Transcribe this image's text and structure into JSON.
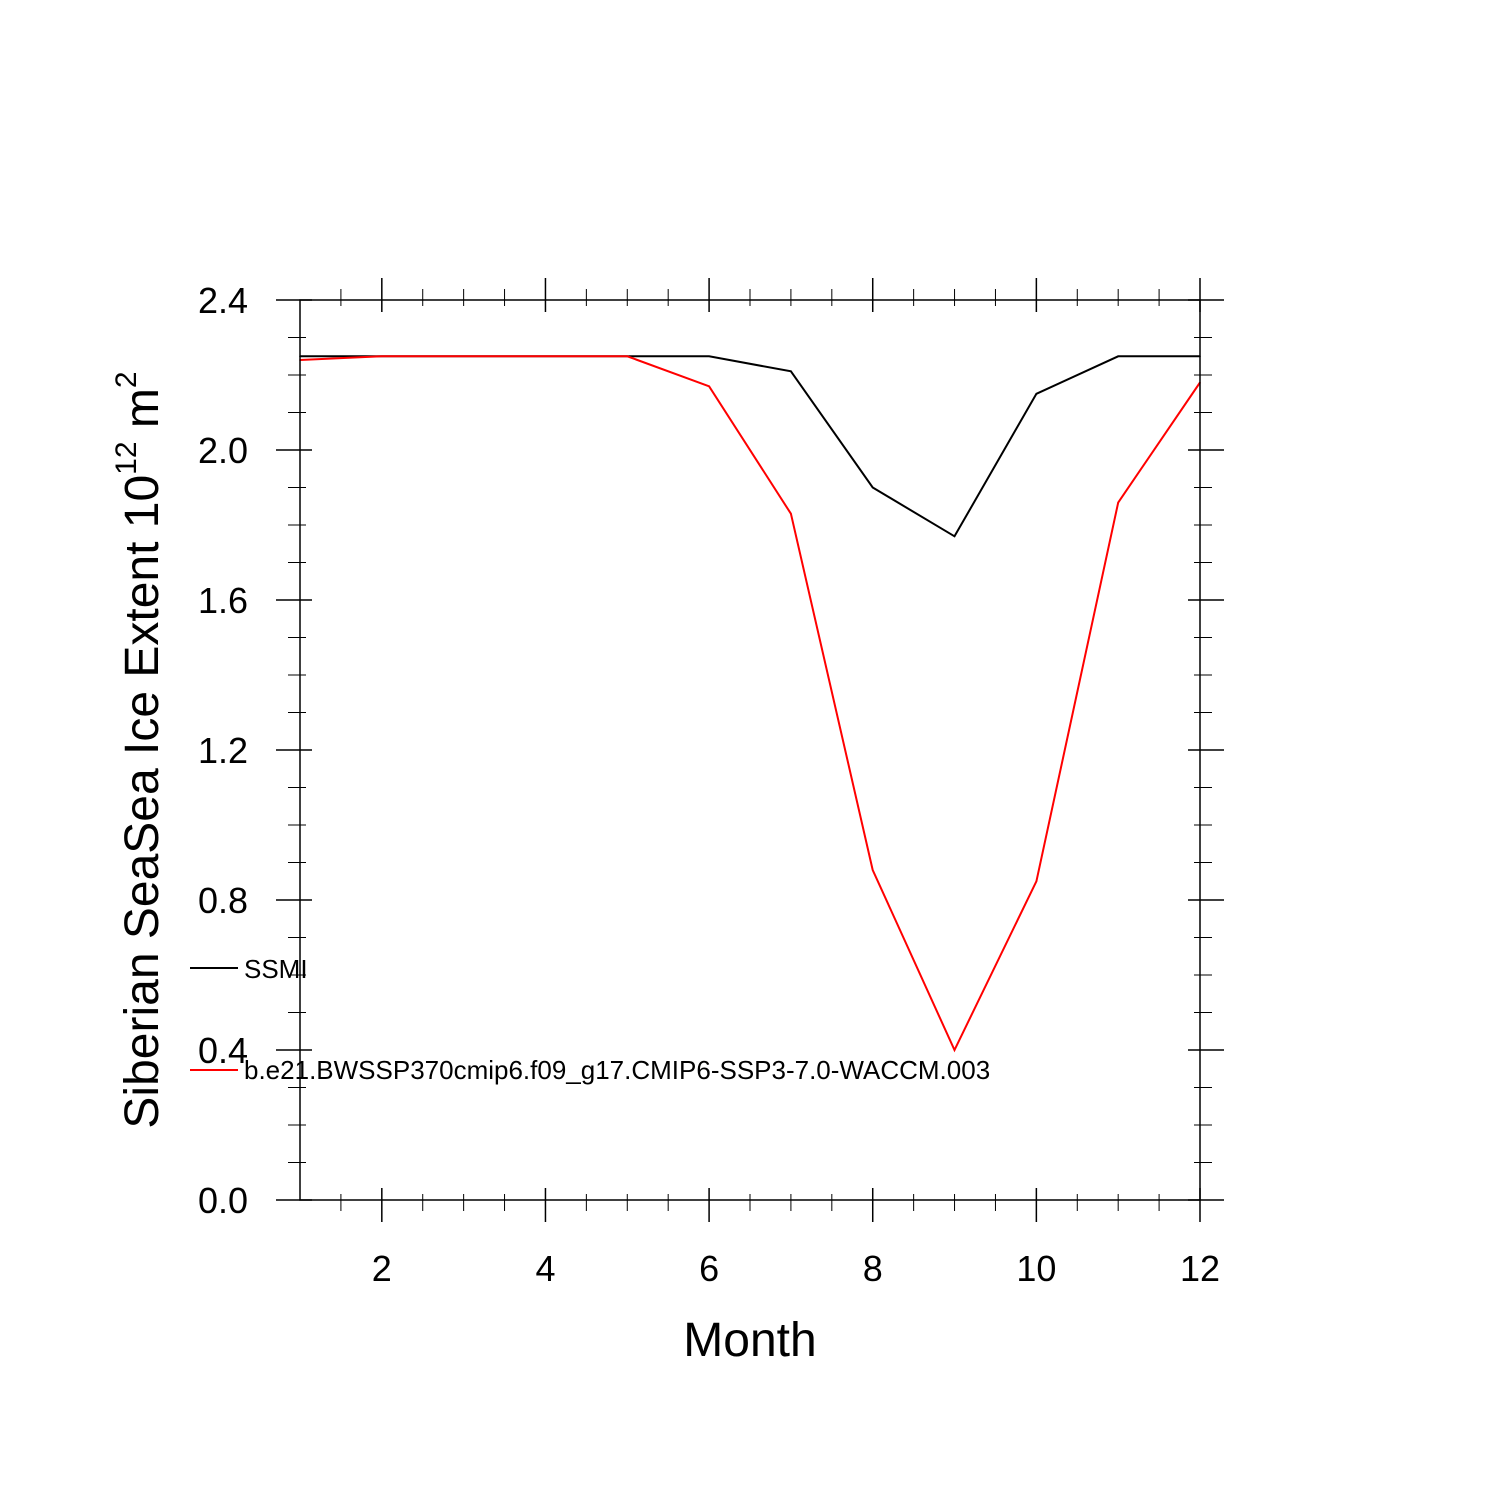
{
  "chart_data": {
    "type": "line",
    "xlabel": "Month",
    "ylabel": {
      "prefix": "Siberian SeaSea Ice Extent 10",
      "exponent": "12",
      "unit": " m",
      "unit_exponent": "2"
    },
    "xlim": [
      1,
      12
    ],
    "ylim": [
      0,
      2.4
    ],
    "xticks": [
      2,
      4,
      6,
      8,
      10,
      12
    ],
    "xtick_labels": [
      "2",
      "4",
      "6",
      "8",
      "10",
      "12"
    ],
    "yticks": [
      0,
      0.4,
      0.8,
      1.2,
      1.6,
      2.0,
      2.4
    ],
    "ytick_labels": [
      "0.0",
      "0.4",
      "0.8",
      "1.2",
      "1.6",
      "2.0",
      "2.4"
    ],
    "grid": false,
    "legend_placement": "left",
    "x": [
      1,
      2,
      3,
      4,
      5,
      6,
      7,
      8,
      9,
      10,
      11,
      12
    ],
    "series": [
      {
        "name": "SSMI",
        "color": "#000000",
        "values": [
          2.25,
          2.25,
          2.25,
          2.25,
          2.25,
          2.25,
          2.21,
          1.9,
          1.77,
          2.15,
          2.25,
          2.25
        ]
      },
      {
        "name": "b.e21.BWSSP370cmip6.f09_g17.CMIP6-SSP3-7.0-WACCM.003",
        "color": "#ff0000",
        "values": [
          2.24,
          2.25,
          2.25,
          2.25,
          2.25,
          2.17,
          1.83,
          0.88,
          0.4,
          0.85,
          1.86,
          2.18
        ]
      }
    ]
  }
}
